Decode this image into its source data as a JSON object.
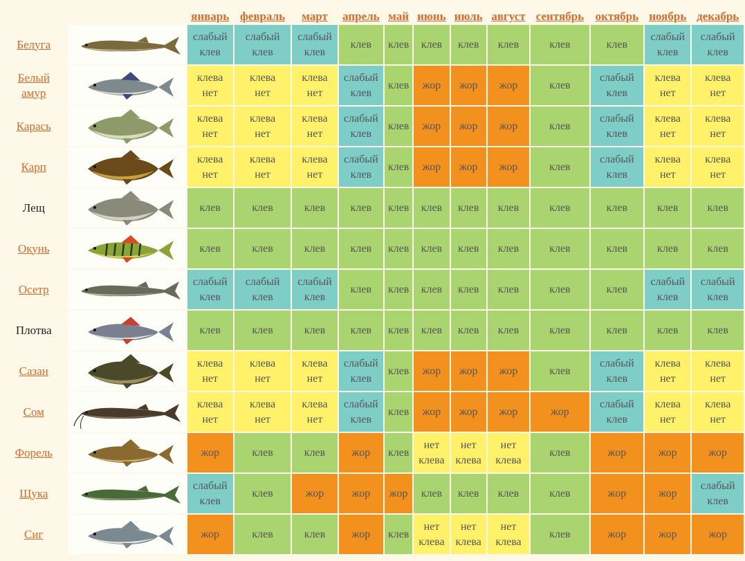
{
  "months": [
    "январь",
    "февраль",
    "март",
    "апрель",
    "май",
    "июнь",
    "июль",
    "август",
    "сентябрь",
    "октябрь",
    "ноябрь",
    "декабрь"
  ],
  "status_labels": {
    "klev": [
      "клев"
    ],
    "slab": [
      "слабый",
      "клев"
    ],
    "net": [
      "клева",
      "нет"
    ],
    "zhor": [
      "жор"
    ],
    "netk": [
      "нет",
      "клева"
    ]
  },
  "colors": {
    "klev": "#a9d46f",
    "slab": "#7ecdc7",
    "net": "#fff26a",
    "netk": "#fff26a",
    "zhor": "#f3911f",
    "link": "#d86a2c",
    "page_bg": "#fdf8e8"
  },
  "fish": [
    {
      "name": [
        "Белуга"
      ],
      "link": true,
      "icon": "beluga-icon",
      "body": "#7b6a3e",
      "belly": "#d9cfa8",
      "elongated": true,
      "cells": [
        "slab",
        "slab",
        "slab",
        "klev",
        "klev",
        "klev",
        "klev",
        "klev",
        "klev",
        "klev",
        "slab",
        "slab"
      ]
    },
    {
      "name": [
        "Белый",
        "амур"
      ],
      "link": true,
      "icon": "grass-carp-icon",
      "body": "#7f8a8c",
      "belly": "#d7d9d0",
      "fin": "#3f4a7a",
      "cells": [
        "net",
        "net",
        "net",
        "slab",
        "klev",
        "zhor",
        "zhor",
        "zhor",
        "klev",
        "slab",
        "net",
        "net"
      ]
    },
    {
      "name": [
        "Карась"
      ],
      "link": true,
      "icon": "crucian-icon",
      "body": "#8f9a6a",
      "belly": "#d9dcb8",
      "deep": true,
      "cells": [
        "net",
        "net",
        "net",
        "slab",
        "klev",
        "zhor",
        "zhor",
        "zhor",
        "klev",
        "slab",
        "net",
        "net"
      ]
    },
    {
      "name": [
        "Карп"
      ],
      "link": true,
      "icon": "carp-icon",
      "body": "#6b4a1a",
      "belly": "#c8a040",
      "deep": true,
      "cells": [
        "net",
        "net",
        "net",
        "slab",
        "klev",
        "zhor",
        "zhor",
        "zhor",
        "klev",
        "slab",
        "net",
        "net"
      ]
    },
    {
      "name": [
        "Лещ"
      ],
      "link": false,
      "icon": "bream-icon",
      "body": "#8a8a7a",
      "belly": "#d4d0c0",
      "deep": true,
      "cells": [
        "klev",
        "klev",
        "klev",
        "klev",
        "klev",
        "klev",
        "klev",
        "klev",
        "klev",
        "klev",
        "klev",
        "klev"
      ]
    },
    {
      "name": [
        "Окунь"
      ],
      "link": true,
      "icon": "perch-icon",
      "body": "#8aa43a",
      "belly": "#e0d060",
      "fin": "#d25020",
      "striped": true,
      "cells": [
        "klev",
        "klev",
        "klev",
        "klev",
        "klev",
        "klev",
        "klev",
        "klev",
        "klev",
        "klev",
        "klev",
        "klev"
      ]
    },
    {
      "name": [
        "Осетр"
      ],
      "link": true,
      "icon": "sturgeon-icon",
      "body": "#6a6a5a",
      "belly": "#cfcab0",
      "elongated": true,
      "cells": [
        "slab",
        "slab",
        "slab",
        "klev",
        "klev",
        "klev",
        "klev",
        "klev",
        "klev",
        "klev",
        "slab",
        "slab"
      ]
    },
    {
      "name": [
        "Плотва"
      ],
      "link": false,
      "icon": "roach-icon",
      "body": "#7a8090",
      "belly": "#e0e0e0",
      "fin": "#c84030",
      "cells": [
        "klev",
        "klev",
        "klev",
        "klev",
        "klev",
        "klev",
        "klev",
        "klev",
        "klev",
        "klev",
        "klev",
        "klev"
      ]
    },
    {
      "name": [
        "Сазан"
      ],
      "link": true,
      "icon": "wild-carp-icon",
      "body": "#4a4a2a",
      "belly": "#a09060",
      "deep": true,
      "cells": [
        "net",
        "net",
        "net",
        "slab",
        "klev",
        "zhor",
        "zhor",
        "zhor",
        "klev",
        "slab",
        "net",
        "net"
      ]
    },
    {
      "name": [
        "Сом"
      ],
      "link": true,
      "icon": "catfish-icon",
      "body": "#4a3a2a",
      "belly": "#9a8a7a",
      "elongated": true,
      "catfish": true,
      "cells": [
        "net",
        "net",
        "net",
        "slab",
        "klev",
        "zhor",
        "zhor",
        "zhor",
        "zhor",
        "slab",
        "net",
        "net"
      ]
    },
    {
      "name": [
        "Форель"
      ],
      "link": true,
      "icon": "trout-icon",
      "body": "#8a6a30",
      "belly": "#d0b070",
      "cells": [
        "zhor",
        "klev",
        "klev",
        "zhor",
        "klev",
        "netk",
        "netk",
        "netk",
        "klev",
        "zhor",
        "zhor",
        "zhor"
      ]
    },
    {
      "name": [
        "Щука"
      ],
      "link": true,
      "icon": "pike-icon",
      "body": "#4a6a3a",
      "belly": "#b0b890",
      "elongated": true,
      "cells": [
        "slab",
        "klev",
        "zhor",
        "zhor",
        "zhor",
        "klev",
        "klev",
        "klev",
        "klev",
        "zhor",
        "zhor",
        "slab"
      ]
    },
    {
      "name": [
        "Сиг"
      ],
      "link": true,
      "icon": "whitefish-icon",
      "body": "#7a8a90",
      "belly": "#e4e4e0",
      "cells": [
        "zhor",
        "klev",
        "klev",
        "zhor",
        "klev",
        "netk",
        "netk",
        "netk",
        "klev",
        "zhor",
        "zhor",
        "zhor"
      ]
    }
  ]
}
